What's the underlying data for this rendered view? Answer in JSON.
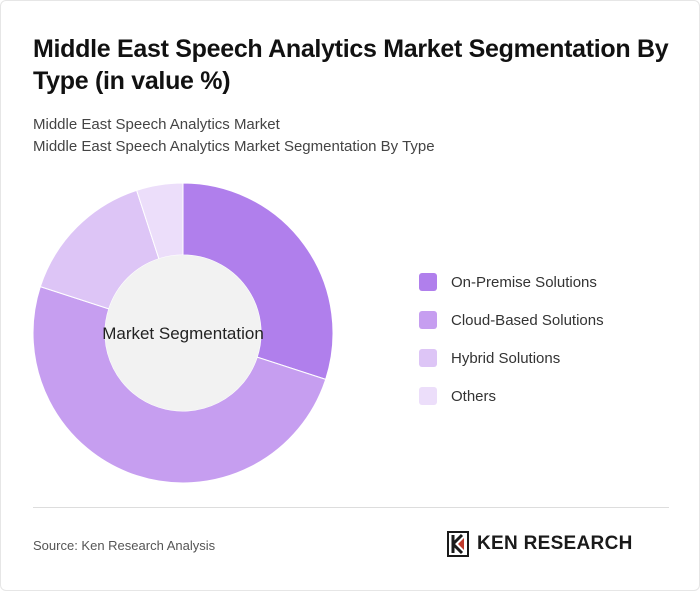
{
  "header": {
    "title": "Middle East Speech Analytics Market Segmentation By Type (in value %)",
    "subtitle_line1": "Middle East Speech Analytics Market",
    "subtitle_line2": "Middle East Speech Analytics Market Segmentation By Type"
  },
  "chart_data": {
    "type": "pie",
    "donut": true,
    "center_label": "Market Segmentation",
    "categories": [
      "On-Premise Solutions",
      "Cloud-Based Solutions",
      "Hybrid Solutions",
      "Others"
    ],
    "values": [
      30,
      50,
      15,
      5
    ],
    "colors": [
      "#b07fec",
      "#c69ef0",
      "#ddc5f6",
      "#ecdefa"
    ],
    "legend_position": "right"
  },
  "footer": {
    "source": "Source: Ken Research Analysis",
    "brand": "KEN RESEARCH"
  }
}
